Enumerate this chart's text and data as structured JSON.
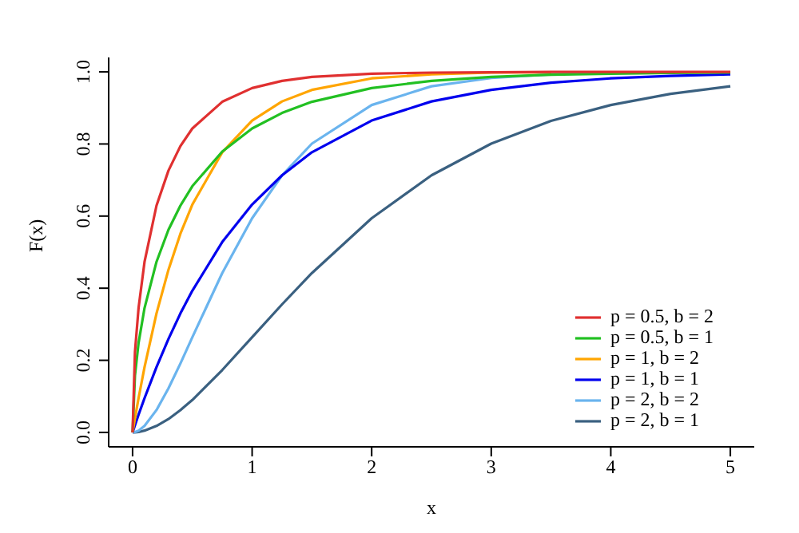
{
  "chart_data": {
    "type": "line",
    "xlabel": "x",
    "ylabel": "F(x)",
    "x": [
      0,
      0.02,
      0.05,
      0.1,
      0.2,
      0.3,
      0.4,
      0.5,
      0.75,
      1,
      1.25,
      1.5,
      2,
      2.5,
      3,
      3.5,
      4,
      4.5,
      5
    ],
    "series": [
      {
        "name": "p = 0.5, b = 2",
        "color": "#e03030",
        "values": [
          0,
          0.223,
          0.345,
          0.473,
          0.629,
          0.726,
          0.794,
          0.843,
          0.917,
          0.955,
          0.975,
          0.986,
          0.995,
          0.998,
          0.999,
          1,
          1,
          1,
          1
        ]
      },
      {
        "name": "p = 0.5, b = 1",
        "color": "#22c022",
        "values": [
          0,
          0.158,
          0.248,
          0.345,
          0.473,
          0.562,
          0.629,
          0.683,
          0.779,
          0.843,
          0.886,
          0.917,
          0.955,
          0.975,
          0.986,
          0.992,
          0.995,
          0.997,
          0.998
        ]
      },
      {
        "name": "p = 1, b = 2",
        "color": "#ffa500",
        "values": [
          0,
          0.039,
          0.095,
          0.181,
          0.33,
          0.451,
          0.551,
          0.632,
          0.777,
          0.865,
          0.918,
          0.95,
          0.982,
          0.993,
          0.998,
          0.999,
          null,
          null,
          null
        ]
      },
      {
        "name": "p = 1, b = 1",
        "color": "#0000ee",
        "values": [
          0,
          0.02,
          0.049,
          0.095,
          0.181,
          0.259,
          0.33,
          0.393,
          0.528,
          0.632,
          0.713,
          0.777,
          0.865,
          0.918,
          0.95,
          0.97,
          0.982,
          0.989,
          0.993
        ]
      },
      {
        "name": "p = 2, b = 2",
        "color": "#6ab4ee",
        "values": [
          0,
          0.001,
          0.005,
          0.018,
          0.062,
          0.122,
          0.191,
          0.264,
          0.442,
          0.594,
          0.713,
          0.801,
          0.908,
          0.96,
          0.983,
          0.993,
          0.997,
          0.999,
          null
        ]
      },
      {
        "name": "p = 2, b = 1",
        "color": "#3a6080",
        "values": [
          0,
          0,
          0.001,
          0.005,
          0.018,
          0.037,
          0.062,
          0.09,
          0.173,
          0.264,
          0.355,
          0.442,
          0.594,
          0.713,
          0.801,
          0.864,
          0.908,
          0.939,
          0.96
        ]
      }
    ],
    "xlim": [
      -0.2,
      5.2
    ],
    "xticks": [
      0,
      1,
      2,
      3,
      4,
      5
    ],
    "ylim": [
      -0.04,
      1.04
    ],
    "yticks": [
      {
        "value": 0,
        "label": "0.0"
      },
      {
        "value": 0.2,
        "label": "0.2"
      },
      {
        "value": 0.4,
        "label": "0.4"
      },
      {
        "value": 0.6,
        "label": "0.6"
      },
      {
        "value": 0.8,
        "label": "0.8"
      },
      {
        "value": 1,
        "label": "1.0"
      }
    ],
    "grid": false,
    "legend": "bottom right"
  }
}
